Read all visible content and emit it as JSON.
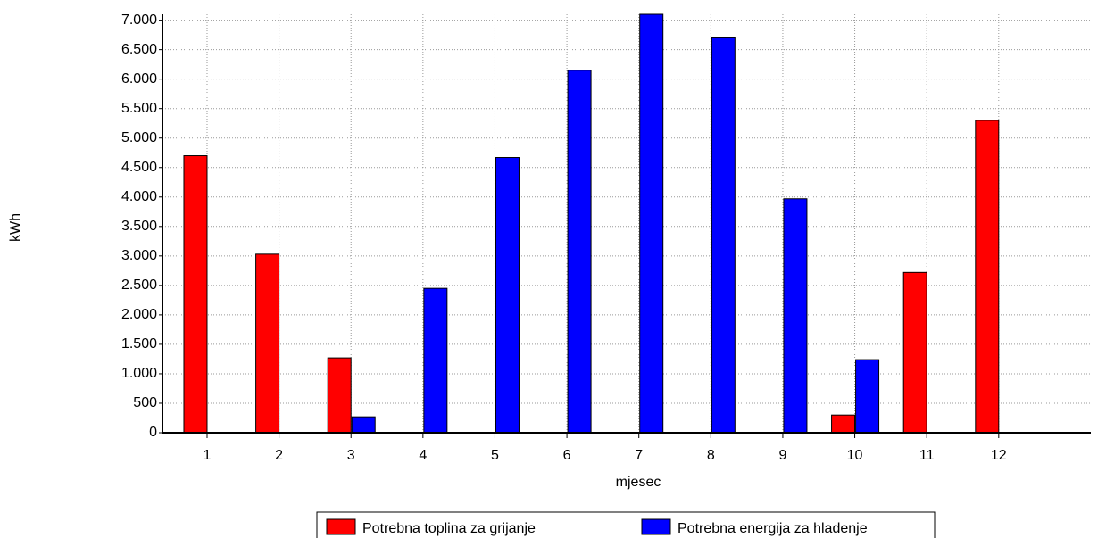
{
  "chart_data": {
    "type": "bar",
    "x_label": "mjesec",
    "y_label": "kWh",
    "categories": [
      "1",
      "2",
      "3",
      "4",
      "5",
      "6",
      "7",
      "8",
      "9",
      "10",
      "11",
      "12"
    ],
    "series": [
      {
        "name": "Potrebna toplina za grijanje",
        "color": "#ff0000",
        "values": [
          4700,
          3030,
          1270,
          0,
          0,
          0,
          0,
          0,
          0,
          300,
          2720,
          5300
        ]
      },
      {
        "name": "Potrebna energija za hladenje",
        "color": "#0000ff",
        "values": [
          0,
          0,
          270,
          2450,
          4670,
          6150,
          7100,
          6700,
          3970,
          1240,
          0,
          0
        ]
      }
    ],
    "ylim": [
      0,
      7100
    ],
    "yticks": [
      0,
      500,
      {
        "value": 1000,
        "label": "1.000"
      },
      {
        "value": 1500,
        "label": "1.500"
      },
      {
        "value": 2000,
        "label": "2.000"
      },
      {
        "value": 2500,
        "label": "2.500"
      },
      {
        "value": 3000,
        "label": "3.000"
      },
      {
        "value": 3500,
        "label": "3.500"
      },
      {
        "value": 4000,
        "label": "4.000"
      },
      {
        "value": 4500,
        "label": "4.500"
      },
      {
        "value": 5000,
        "label": "5.000"
      },
      {
        "value": 5500,
        "label": "5.500"
      },
      {
        "value": 6000,
        "label": "6.000"
      },
      {
        "value": 6500,
        "label": "6.500"
      },
      {
        "value": 7000,
        "label": "7.000"
      }
    ],
    "grid": true
  }
}
